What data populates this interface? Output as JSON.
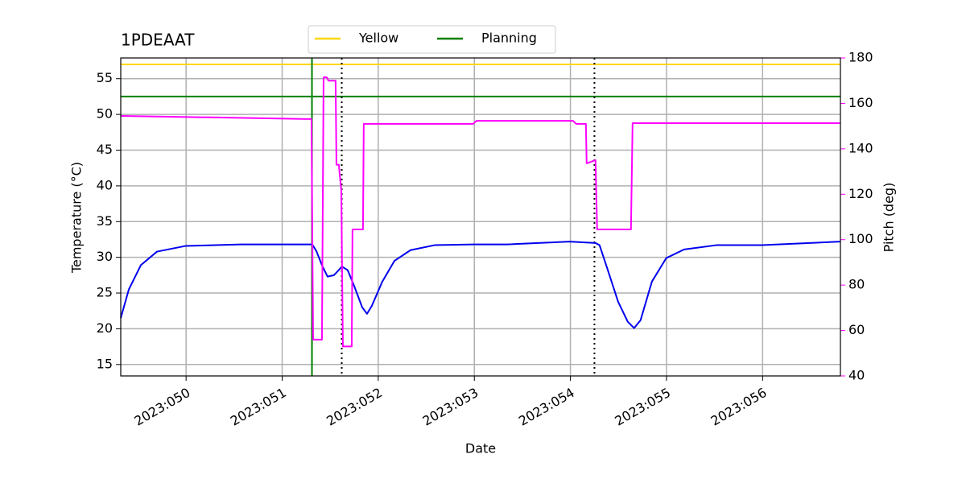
{
  "chart_data": {
    "type": "line",
    "title": "1PDEAAT",
    "xlabel": "Date",
    "ylabel": "Temperature (°C)",
    "y2label": "Pitch (deg)",
    "y2color": "#ff00ff",
    "grid": true,
    "legend": "upper center",
    "xlim": [
      49.32,
      56.81
    ],
    "xticks": [
      {
        "value": 50,
        "label": "2023:050"
      },
      {
        "value": 51,
        "label": "2023:051"
      },
      {
        "value": 52,
        "label": "2023:052"
      },
      {
        "value": 53,
        "label": "2023:053"
      },
      {
        "value": 54,
        "label": "2023:054"
      },
      {
        "value": 55,
        "label": "2023:055"
      },
      {
        "value": 56,
        "label": "2023:056"
      }
    ],
    "ylim": [
      13.4,
      57.9
    ],
    "yticks": [
      15,
      20,
      25,
      30,
      35,
      40,
      45,
      50,
      55
    ],
    "y2lim": [
      40,
      180
    ],
    "y2ticks": [
      40,
      60,
      80,
      100,
      120,
      140,
      160,
      180
    ],
    "hlines": [
      {
        "name": "Yellow",
        "color": "#ffd700",
        "value": 57
      },
      {
        "name": "Planning",
        "color": "#008000",
        "value": 52.5
      }
    ],
    "vlines": [
      {
        "value": 51.31,
        "color": "#008000",
        "style": "solid"
      },
      {
        "value": 51.62,
        "color": "#000000",
        "style": "dotted"
      },
      {
        "value": 54.25,
        "color": "#000000",
        "style": "dotted"
      }
    ],
    "series": [
      {
        "color": "#0000ee",
        "axis": "y",
        "x": [
          49.32,
          49.404,
          49.529,
          49.697,
          49.998,
          50.576,
          51.313,
          51.355,
          51.414,
          51.472,
          51.539,
          51.623,
          51.682,
          51.749,
          51.833,
          51.883,
          51.933,
          52.042,
          52.168,
          52.335,
          52.586,
          52.997,
          53.34,
          53.993,
          54.261,
          54.303,
          54.387,
          54.496,
          54.596,
          54.663,
          54.73,
          54.848,
          54.998,
          55.183,
          55.518,
          55.995,
          56.807
        ],
        "values": [
          21.5,
          25.5,
          28.9,
          30.8,
          31.6,
          31.8,
          31.8,
          30.9,
          28.9,
          27.3,
          27.5,
          28.7,
          28.2,
          26.0,
          23.0,
          22.1,
          23.2,
          26.6,
          29.5,
          31.0,
          31.7,
          31.8,
          31.8,
          32.2,
          32.0,
          31.7,
          28.3,
          23.8,
          21.0,
          20.1,
          21.2,
          26.6,
          29.9,
          31.1,
          31.7,
          31.7,
          32.2
        ]
      },
      {
        "color": "#ff00ff",
        "axis": "y2",
        "x": [
          49.32,
          51.305,
          51.322,
          51.414,
          51.431,
          51.464,
          51.481,
          51.556,
          51.565,
          51.59,
          51.598,
          51.615,
          51.632,
          51.724,
          51.732,
          51.841,
          51.849,
          52.988,
          53.022,
          54.027,
          54.06,
          54.161,
          54.169,
          54.261,
          54.278,
          54.63,
          54.647,
          56.807
        ],
        "values": [
          154.5,
          153.1,
          56,
          56,
          171.5,
          171.5,
          170,
          170,
          133,
          133,
          129,
          122,
          53,
          53,
          104.5,
          104.5,
          151,
          151,
          152.3,
          152.3,
          151,
          151,
          133.6,
          135,
          104.5,
          104.5,
          151.3,
          151.3
        ]
      }
    ]
  }
}
